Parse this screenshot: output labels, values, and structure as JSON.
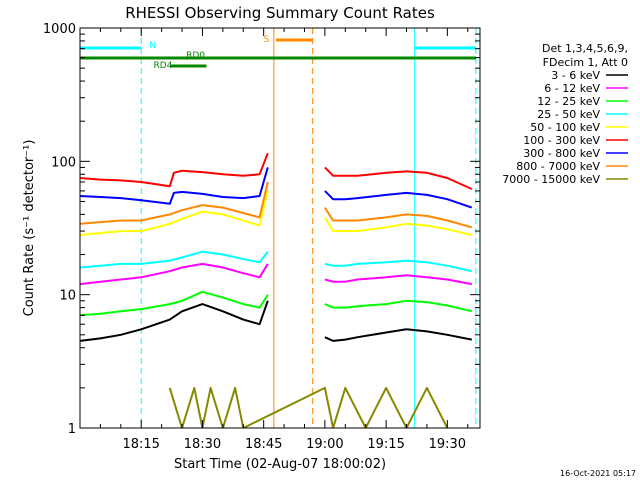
{
  "chart_data": {
    "type": "line",
    "title": "RHESSI Observing Summary Count Rates",
    "xlabel": "Start Time (02-Aug-07 18:00:02)",
    "ylabel": "Count Rate (s⁻¹ detector⁻¹)",
    "footer": "16-Oct-2021 05:17",
    "y_scale": "log",
    "ylim": [
      1,
      1000
    ],
    "xlim_minutes": [
      0,
      98
    ],
    "y_ticks": [
      {
        "value": 1,
        "label": "1"
      },
      {
        "value": 10,
        "label": "10"
      },
      {
        "value": 100,
        "label": "100"
      },
      {
        "value": 1000,
        "label": "1000"
      }
    ],
    "x_ticks": [
      {
        "minute": 15,
        "label": "18:15"
      },
      {
        "minute": 30,
        "label": "18:30"
      },
      {
        "minute": 45,
        "label": "18:45"
      },
      {
        "minute": 60,
        "label": "19:00"
      },
      {
        "minute": 75,
        "label": "19:15"
      },
      {
        "minute": 90,
        "label": "19:30"
      }
    ],
    "legend": {
      "header": [
        "Det 1,3,4,5,6,9,",
        "FDecim 1, Att 0"
      ],
      "placement": "right"
    },
    "series": [
      {
        "name": "3 - 6 keV",
        "color": "#000000",
        "x": [
          0,
          5,
          10,
          15,
          22,
          25,
          30,
          35,
          40,
          44,
          46,
          47,
          60,
          62,
          65,
          68,
          75,
          80,
          85,
          90,
          96
        ],
        "y": [
          4.5,
          4.7,
          5.0,
          5.5,
          6.5,
          7.5,
          8.5,
          7.5,
          6.5,
          6.0,
          9.0,
          null,
          4.8,
          4.5,
          4.6,
          4.8,
          5.2,
          5.5,
          5.3,
          5.0,
          4.6
        ]
      },
      {
        "name": "6 - 12 keV",
        "color": "#ff00ff",
        "x": [
          0,
          5,
          10,
          15,
          22,
          25,
          30,
          35,
          40,
          44,
          46,
          47,
          60,
          62,
          65,
          68,
          75,
          80,
          85,
          90,
          96
        ],
        "y": [
          12,
          12.5,
          13,
          13.5,
          15,
          16,
          17,
          16,
          14.5,
          13.5,
          17,
          null,
          13,
          12.5,
          12.5,
          13,
          13.5,
          14,
          13.5,
          13,
          12
        ]
      },
      {
        "name": "12 - 25 keV",
        "color": "#00ff00",
        "x": [
          0,
          5,
          10,
          15,
          22,
          25,
          30,
          35,
          40,
          44,
          46,
          47,
          60,
          62,
          65,
          68,
          75,
          80,
          85,
          90,
          96
        ],
        "y": [
          7,
          7.2,
          7.5,
          7.8,
          8.5,
          9.0,
          10.5,
          9.5,
          8.5,
          8.0,
          10,
          null,
          8.5,
          8.0,
          8.0,
          8.2,
          8.5,
          9.0,
          8.8,
          8.3,
          7.5
        ]
      },
      {
        "name": "25 - 50 keV",
        "color": "#00ffff",
        "x": [
          0,
          5,
          10,
          15,
          22,
          25,
          30,
          35,
          40,
          44,
          46,
          47,
          60,
          62,
          65,
          68,
          75,
          80,
          85,
          90,
          96
        ],
        "y": [
          16,
          16.5,
          17,
          17,
          18,
          19,
          21,
          20,
          18.5,
          17.5,
          21,
          null,
          17,
          16.5,
          16.5,
          17,
          17.5,
          18,
          17.5,
          16.5,
          15
        ]
      },
      {
        "name": "50 - 100 keV",
        "color": "#ffff00",
        "x": [
          0,
          5,
          10,
          15,
          22,
          25,
          30,
          35,
          40,
          44,
          46,
          47,
          60,
          62,
          65,
          68,
          75,
          80,
          85,
          90,
          96
        ],
        "y": [
          28,
          29,
          30,
          30,
          34,
          37,
          42,
          40,
          36,
          33,
          60,
          null,
          38,
          30,
          30,
          30,
          32,
          34,
          33,
          31,
          28
        ]
      },
      {
        "name": "100 - 300 keV",
        "color": "#ff0000",
        "x": [
          0,
          5,
          10,
          15,
          22,
          23,
          25,
          30,
          35,
          40,
          44,
          46,
          47,
          60,
          62,
          65,
          68,
          75,
          80,
          85,
          90,
          96
        ],
        "y": [
          75,
          73,
          72,
          70,
          65,
          82,
          85,
          83,
          80,
          78,
          80,
          115,
          null,
          90,
          78,
          78,
          78,
          82,
          84,
          82,
          75,
          62
        ]
      },
      {
        "name": "300 - 800 keV",
        "color": "#0000ff",
        "x": [
          0,
          5,
          10,
          15,
          22,
          23,
          25,
          30,
          35,
          40,
          44,
          46,
          47,
          60,
          62,
          65,
          68,
          75,
          80,
          85,
          90,
          96
        ],
        "y": [
          55,
          54,
          53,
          51,
          48,
          58,
          59,
          57,
          54,
          53,
          55,
          90,
          null,
          60,
          52,
          52,
          53,
          56,
          58,
          56,
          52,
          45
        ]
      },
      {
        "name": "800 - 7000 keV",
        "color": "#ff8800",
        "x": [
          0,
          5,
          10,
          15,
          22,
          25,
          30,
          35,
          40,
          44,
          46,
          47,
          60,
          62,
          65,
          68,
          75,
          80,
          85,
          90,
          96
        ],
        "y": [
          34,
          35,
          36,
          36,
          40,
          43,
          47,
          45,
          41,
          38,
          70,
          null,
          45,
          36,
          36,
          36,
          38,
          40,
          39,
          36,
          32
        ]
      },
      {
        "name": "7000 - 15000 keV",
        "color": "#888800",
        "x": [
          22,
          25,
          28,
          30,
          32,
          35,
          38,
          40,
          60,
          62,
          65,
          70,
          75,
          80,
          85,
          90
        ],
        "y": [
          2.0,
          1.0,
          2.0,
          1.0,
          2.0,
          1.0,
          2.0,
          1.0,
          2.0,
          1.0,
          2.0,
          1.0,
          2.0,
          1.0,
          2.0,
          1.0
        ]
      }
    ],
    "annotations": [
      {
        "label": "N",
        "color": "#00ffff"
      },
      {
        "label": "RD0",
        "color": "#008800"
      },
      {
        "label": "RD4",
        "color": "#008800"
      },
      {
        "label": "S",
        "color": "#ff8800"
      }
    ],
    "intervals": [
      {
        "kind": "N",
        "color": "#00ffff",
        "start": 0,
        "end": 15
      },
      {
        "kind": "N",
        "color": "#00ffff",
        "start": 82,
        "end": 97
      },
      {
        "kind": "S",
        "color": "#ff8800",
        "start": 48,
        "end": 57
      },
      {
        "kind": "RD4",
        "color": "#008800",
        "start": 22,
        "end": 31
      },
      {
        "kind": "RD0",
        "color": "#008800",
        "start": 0,
        "end": 97
      }
    ],
    "vertical_markers": [
      {
        "minute": 0,
        "color": "#00ffff",
        "style": "solid"
      },
      {
        "minute": 15,
        "color": "#00ffff",
        "style": "dashed"
      },
      {
        "minute": 47.5,
        "color": "#ff8800",
        "style": "solid"
      },
      {
        "minute": 57,
        "color": "#ff8800",
        "style": "dashed"
      },
      {
        "minute": 82,
        "color": "#00ffff",
        "style": "solid"
      },
      {
        "minute": 97,
        "color": "#00ffff",
        "style": "dashed"
      }
    ]
  }
}
